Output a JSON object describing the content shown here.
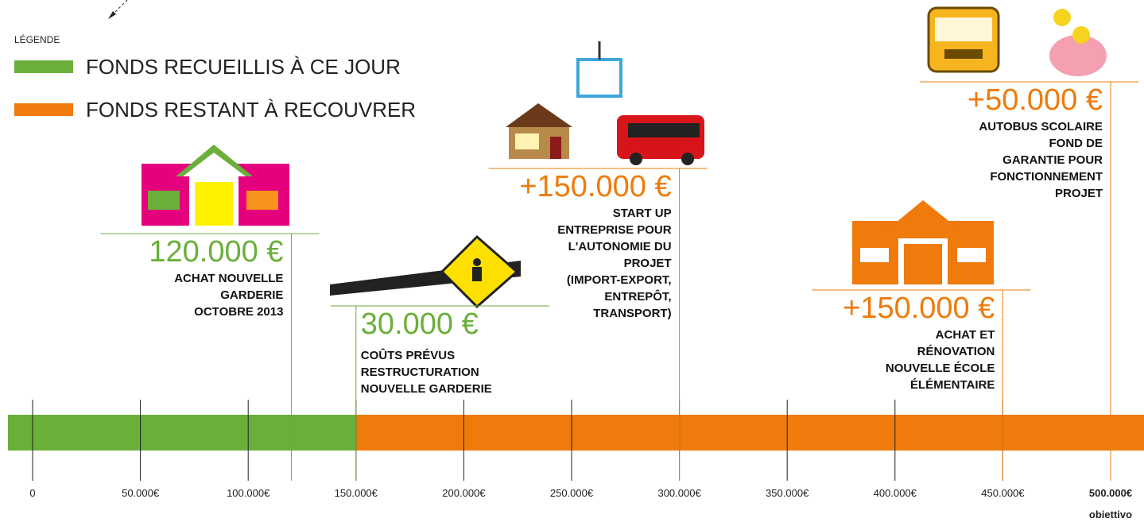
{
  "chart_data": {
    "type": "funding-timeline",
    "legend_title": "LÉGENDE",
    "series": [
      {
        "name": "FONDS RECUEILLIS À CE JOUR",
        "color": "#6aaf3a",
        "values": [
          150000
        ]
      },
      {
        "name": "FONDS RESTANT À RECOUVRER",
        "color": "#ee7b0b",
        "values": [
          350000
        ]
      }
    ],
    "milestones": {
      "values": [
        120000,
        30000,
        150000,
        150000,
        50000
      ],
      "value_labels": [
        "120.000 €",
        "30.000 €",
        "+150.000 €",
        "+150.000 €",
        "+50.000 €"
      ],
      "colors": [
        "#6aaf3a",
        "#6aaf3a",
        "#ee7b0b",
        "#ee7b0b",
        "#ee7b0b"
      ],
      "descriptions": [
        [
          "ACHAT NOUVELLE",
          "GARDERIE",
          "OCTOBRE 2013"
        ],
        [
          "COÛTS PRÉVUS",
          "RESTRUCTURATION",
          "NOUVELLE GARDERIE"
        ],
        [
          "START UP",
          "ENTREPRISE POUR",
          "L'AUTONOMIE DU",
          "PROJET",
          "(IMPORT-EXPORT,",
          "ENTREPÔT,",
          "TRANSPORT)"
        ],
        [
          "ACHAT ET",
          "RÉNOVATION",
          "NOUVELLE ÉCOLE",
          "ÉLÉMENTAIRE"
        ],
        [
          "AUTOBUS SCOLAIRE",
          "FOND DE",
          "GARANTIE POUR",
          "FONCTIONNEMENT",
          "PROJET"
        ]
      ]
    },
    "xlim": [
      0,
      500000
    ],
    "xticks": [
      0,
      {
        "value": 50000,
        "label": "50.000€"
      },
      {
        "value": 100000,
        "label": "100.000€"
      },
      {
        "value": 150000,
        "label": "150.000€"
      },
      {
        "value": 200000,
        "label": "200.000€"
      },
      {
        "value": 250000,
        "label": "250.000€"
      },
      {
        "value": 300000,
        "label": "300.000€"
      },
      {
        "value": 350000,
        "label": "350.000€"
      },
      {
        "value": 400000,
        "label": "400.000€"
      },
      {
        "value": 450000,
        "label": "450.000€"
      },
      {
        "value": 500000,
        "label": "500.000€"
      }
    ],
    "goal_label": "obiettivo"
  }
}
